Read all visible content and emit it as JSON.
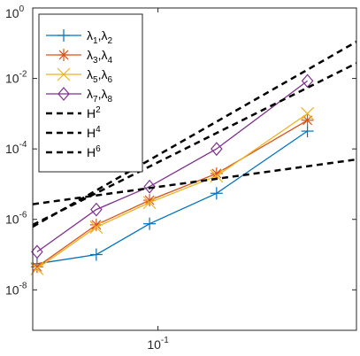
{
  "chart_data": {
    "type": "line",
    "x_scale": "log",
    "y_scale": "log",
    "xlim": [
      0.0385,
      0.454
    ],
    "ylim": [
      7.1e-10,
      1
    ],
    "x_ticks": [
      {
        "value": 0.1,
        "base": "10",
        "exp": "-1"
      }
    ],
    "y_ticks": [
      {
        "value": 1,
        "base": "10",
        "exp": "0"
      },
      {
        "value": 0.01,
        "base": "10",
        "exp": "-2"
      },
      {
        "value": 0.0001,
        "base": "10",
        "exp": "-4"
      },
      {
        "value": 1e-06,
        "base": "10",
        "exp": "-6"
      },
      {
        "value": 1e-08,
        "base": "10",
        "exp": "-8"
      }
    ],
    "grid": false,
    "legend_position": "top-left",
    "x": [
      0.0398,
      0.0625,
      0.0938,
      0.1563,
      0.3125
    ],
    "series": [
      {
        "key": "s1",
        "label": "λ1,λ2",
        "parts": [
          "λ",
          "1",
          ",λ",
          "2"
        ],
        "color": "#0072BD",
        "marker": "plus",
        "values": [
          5.5e-08,
          1e-07,
          7.5e-07,
          5.5e-06,
          0.00032
        ]
      },
      {
        "key": "s2",
        "label": "λ3,λ4",
        "parts": [
          "λ",
          "3",
          ",λ",
          "4"
        ],
        "color": "#D95319",
        "marker": "asterisk",
        "values": [
          4.5e-08,
          7e-07,
          3.5e-06,
          2e-05,
          0.00065
        ]
      },
      {
        "key": "s3",
        "label": "λ5,λ6",
        "parts": [
          "λ",
          "5",
          ",λ",
          "6"
        ],
        "color": "#EDB120",
        "marker": "x",
        "values": [
          4e-08,
          6e-07,
          3e-06,
          1.7e-05,
          0.001
        ]
      },
      {
        "key": "s4",
        "label": "λ7,λ8",
        "parts": [
          "λ",
          "7",
          ",λ",
          "8"
        ],
        "color": "#7E2F8E",
        "marker": "diamond",
        "values": [
          1.2e-07,
          1.9e-06,
          8.5e-06,
          0.0001,
          0.0085
        ]
      },
      {
        "key": "ref2",
        "label": "H2",
        "parts": [
          "H",
          "2"
        ],
        "color": "#000000",
        "marker": "none",
        "dashed": true,
        "x": [
          0.0385,
          0.454
        ],
        "values": [
          2.7e-06,
          5e-05
        ]
      },
      {
        "key": "ref4",
        "label": "H4",
        "parts": [
          "H",
          "4"
        ],
        "color": "#000000",
        "marker": "none",
        "dashed": true,
        "x": [
          0.0385,
          0.454
        ],
        "values": [
          6.2e-07,
          0.11
        ]
      },
      {
        "key": "ref6",
        "label": "H6",
        "parts": [
          "H",
          "6"
        ],
        "color": "#000000",
        "marker": "none",
        "dashed": true,
        "x": [
          0.0385,
          0.454
        ],
        "values": [
          7e-07,
          0.027
        ]
      }
    ]
  }
}
